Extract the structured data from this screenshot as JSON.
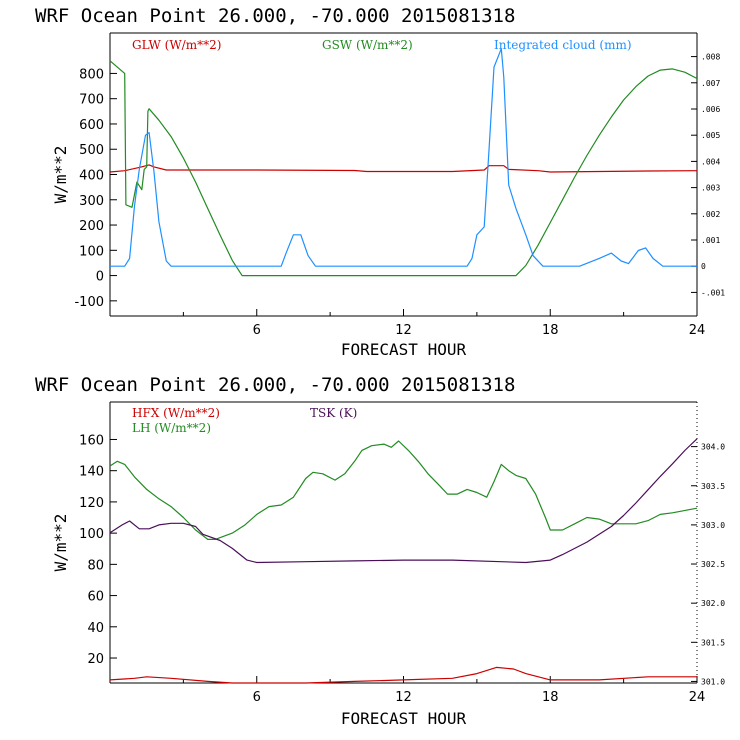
{
  "chart_data": [
    {
      "type": "line",
      "title": "WRF   Ocean Point   26.000, -70.000  2015081318",
      "xlabel": "FORECAST HOUR",
      "ylabel": "W/m**2",
      "xlim": [
        0,
        24
      ],
      "ylim": [
        -160,
        960
      ],
      "xticks": [
        6,
        12,
        18,
        24
      ],
      "yticks": [
        -100,
        0,
        100,
        200,
        300,
        400,
        500,
        600,
        700,
        800
      ],
      "y2lim": [
        -0.0019,
        0.0089
      ],
      "y2ticks": [
        -0.001,
        0,
        0.001,
        0.002,
        0.003,
        0.004,
        0.005,
        0.006,
        0.007,
        0.008
      ],
      "y2ticklabels": [
        "-.001",
        "0",
        ".001",
        ".002",
        ".003",
        ".004",
        ".005",
        ".006",
        ".007",
        ".008"
      ],
      "series": [
        {
          "name": "GLW (W/m**2)",
          "color": "#cc0000",
          "axis": "left",
          "points": [
            [
              0,
              410
            ],
            [
              0.6,
              415
            ],
            [
              1.2,
              428
            ],
            [
              1.6,
              438
            ],
            [
              1.8,
              430
            ],
            [
              2.3,
              418
            ],
            [
              6,
              418
            ],
            [
              10,
              416
            ],
            [
              10.5,
              412
            ],
            [
              14,
              412
            ],
            [
              15.3,
              418
            ],
            [
              15.5,
              435
            ],
            [
              16.1,
              435
            ],
            [
              16.3,
              420
            ],
            [
              17.5,
              415
            ],
            [
              18,
              410
            ],
            [
              20,
              412
            ],
            [
              22,
              414
            ],
            [
              24,
              415
            ]
          ]
        },
        {
          "name": "GSW (W/m**2)",
          "color": "#228b22",
          "axis": "left",
          "points": [
            [
              0,
              850
            ],
            [
              0.6,
              800
            ],
            [
              0.65,
              280
            ],
            [
              0.9,
              270
            ],
            [
              1.1,
              370
            ],
            [
              1.3,
              340
            ],
            [
              1.4,
              420
            ],
            [
              1.5,
              430
            ],
            [
              1.55,
              650
            ],
            [
              1.6,
              660
            ],
            [
              2,
              615
            ],
            [
              2.5,
              550
            ],
            [
              3,
              465
            ],
            [
              3.5,
              370
            ],
            [
              4,
              265
            ],
            [
              4.5,
              160
            ],
            [
              5,
              60
            ],
            [
              5.4,
              0
            ],
            [
              16.6,
              0
            ],
            [
              17,
              40
            ],
            [
              17.5,
              120
            ],
            [
              18,
              210
            ],
            [
              18.5,
              300
            ],
            [
              19,
              390
            ],
            [
              19.5,
              475
            ],
            [
              20,
              555
            ],
            [
              20.5,
              628
            ],
            [
              21,
              695
            ],
            [
              21.5,
              748
            ],
            [
              22,
              790
            ],
            [
              22.5,
              813
            ],
            [
              23,
              818
            ],
            [
              23.5,
              805
            ],
            [
              24,
              780
            ]
          ]
        },
        {
          "name": "Integrated cloud (mm)",
          "color": "#1e90ff",
          "axis": "right",
          "points": [
            [
              0,
              0
            ],
            [
              0.6,
              0
            ],
            [
              0.8,
              0.0003
            ],
            [
              1,
              0.0023
            ],
            [
              1.2,
              0.0037
            ],
            [
              1.45,
              0.005
            ],
            [
              1.6,
              0.0051
            ],
            [
              1.8,
              0.0036
            ],
            [
              2,
              0.0017
            ],
            [
              2.3,
              0.0002
            ],
            [
              2.5,
              0
            ],
            [
              7,
              0
            ],
            [
              7.2,
              0.0005
            ],
            [
              7.5,
              0.0012
            ],
            [
              7.8,
              0.0012
            ],
            [
              8.1,
              0.0004
            ],
            [
              8.4,
              0
            ],
            [
              14.6,
              0
            ],
            [
              14.8,
              0.0003
            ],
            [
              15,
              0.0012
            ],
            [
              15.2,
              0.0014
            ],
            [
              15.3,
              0.0015
            ],
            [
              15.5,
              0.0045
            ],
            [
              15.7,
              0.0076
            ],
            [
              16,
              0.0083
            ],
            [
              16.1,
              0.0072
            ],
            [
              16.3,
              0.0031
            ],
            [
              16.6,
              0.0022
            ],
            [
              17,
              0.0012
            ],
            [
              17.3,
              0.0004
            ],
            [
              17.7,
              0
            ],
            [
              19.2,
              0
            ],
            [
              20,
              0.0003
            ],
            [
              20.5,
              0.0005
            ],
            [
              20.9,
              0.0002
            ],
            [
              21.2,
              0.0001
            ],
            [
              21.6,
              0.0006
            ],
            [
              21.9,
              0.0007
            ],
            [
              22.2,
              0.0003
            ],
            [
              22.6,
              0
            ],
            [
              24,
              0
            ]
          ]
        }
      ]
    },
    {
      "type": "line",
      "title": "WRF   Ocean Point   26.000, -70.000  2015081318",
      "xlabel": "FORECAST HOUR",
      "ylabel": "W/m**2",
      "xlim": [
        0,
        24
      ],
      "ylim": [
        4,
        184
      ],
      "xticks": [
        6,
        12,
        18,
        24
      ],
      "yticks": [
        20,
        40,
        60,
        80,
        100,
        120,
        140,
        160
      ],
      "y2lim": [
        300.98,
        304.57
      ],
      "y2ticks": [
        301.0,
        301.5,
        302.0,
        302.5,
        303.0,
        303.5,
        304.0
      ],
      "y2ticklabels": [
        "301.0",
        "301.5",
        "302.0",
        "302.5",
        "303.0",
        "303.5",
        "304.0"
      ],
      "series": [
        {
          "name": "HFX (W/m**2)",
          "color": "#cc0000",
          "axis": "left",
          "points": [
            [
              0,
              6
            ],
            [
              1,
              7
            ],
            [
              1.5,
              8
            ],
            [
              2.5,
              7
            ],
            [
              4,
              5
            ],
            [
              5,
              4
            ],
            [
              6,
              4
            ],
            [
              8,
              4
            ],
            [
              10,
              5
            ],
            [
              12,
              6
            ],
            [
              14,
              7
            ],
            [
              15,
              10
            ],
            [
              15.8,
              14
            ],
            [
              16.5,
              13
            ],
            [
              17,
              10
            ],
            [
              18,
              6
            ],
            [
              20,
              6
            ],
            [
              22,
              8
            ],
            [
              24,
              8
            ]
          ]
        },
        {
          "name": "LH (W/m**2)",
          "color": "#228b22",
          "axis": "left",
          "points": [
            [
              0,
              143
            ],
            [
              0.3,
              146
            ],
            [
              0.6,
              144
            ],
            [
              1,
              136
            ],
            [
              1.5,
              128
            ],
            [
              2,
              122
            ],
            [
              2.5,
              117
            ],
            [
              3,
              110
            ],
            [
              3.5,
              102
            ],
            [
              4,
              96
            ],
            [
              4.3,
              96
            ],
            [
              5,
              100
            ],
            [
              5.5,
              105
            ],
            [
              6,
              112
            ],
            [
              6.5,
              117
            ],
            [
              7,
              118
            ],
            [
              7.5,
              123
            ],
            [
              8,
              135
            ],
            [
              8.3,
              139
            ],
            [
              8.7,
              138
            ],
            [
              9.2,
              134
            ],
            [
              9.6,
              138
            ],
            [
              10,
              146
            ],
            [
              10.3,
              153
            ],
            [
              10.7,
              156
            ],
            [
              11.2,
              157
            ],
            [
              11.5,
              155
            ],
            [
              11.8,
              159
            ],
            [
              12.2,
              153
            ],
            [
              12.6,
              146
            ],
            [
              13,
              138
            ],
            [
              13.5,
              130
            ],
            [
              13.8,
              125
            ],
            [
              14.2,
              125
            ],
            [
              14.6,
              128
            ],
            [
              15,
              126
            ],
            [
              15.4,
              123
            ],
            [
              15.7,
              133
            ],
            [
              16,
              144
            ],
            [
              16.3,
              140
            ],
            [
              16.6,
              137
            ],
            [
              17,
              135
            ],
            [
              17.4,
              125
            ],
            [
              17.8,
              110
            ],
            [
              18,
              102
            ],
            [
              18.5,
              102
            ],
            [
              19,
              106
            ],
            [
              19.5,
              110
            ],
            [
              20,
              109
            ],
            [
              20.5,
              106
            ],
            [
              21,
              106
            ],
            [
              21.5,
              106
            ],
            [
              22,
              108
            ],
            [
              22.5,
              112
            ],
            [
              23,
              113
            ],
            [
              24,
              116
            ]
          ]
        },
        {
          "name": "TSK (K)",
          "color": "#4b0f5a",
          "axis": "right",
          "points": [
            [
              0,
              302.9
            ],
            [
              0.5,
              303.0
            ],
            [
              0.8,
              303.05
            ],
            [
              1.2,
              302.95
            ],
            [
              1.6,
              302.95
            ],
            [
              2,
              303.0
            ],
            [
              2.5,
              303.02
            ],
            [
              3,
              303.02
            ],
            [
              3.5,
              302.98
            ],
            [
              3.8,
              302.88
            ],
            [
              4.5,
              302.8
            ],
            [
              5,
              302.7
            ],
            [
              5.6,
              302.55
            ],
            [
              6,
              302.52
            ],
            [
              8,
              302.53
            ],
            [
              10,
              302.54
            ],
            [
              12,
              302.55
            ],
            [
              14,
              302.55
            ],
            [
              16,
              302.53
            ],
            [
              17,
              302.52
            ],
            [
              18,
              302.55
            ],
            [
              18.5,
              302.62
            ],
            [
              19,
              302.7
            ],
            [
              19.5,
              302.78
            ],
            [
              20,
              302.88
            ],
            [
              20.5,
              302.98
            ],
            [
              21,
              303.12
            ],
            [
              21.5,
              303.28
            ],
            [
              22,
              303.45
            ],
            [
              22.5,
              303.62
            ],
            [
              23,
              303.78
            ],
            [
              23.5,
              303.95
            ],
            [
              24,
              304.1
            ]
          ]
        }
      ]
    }
  ]
}
